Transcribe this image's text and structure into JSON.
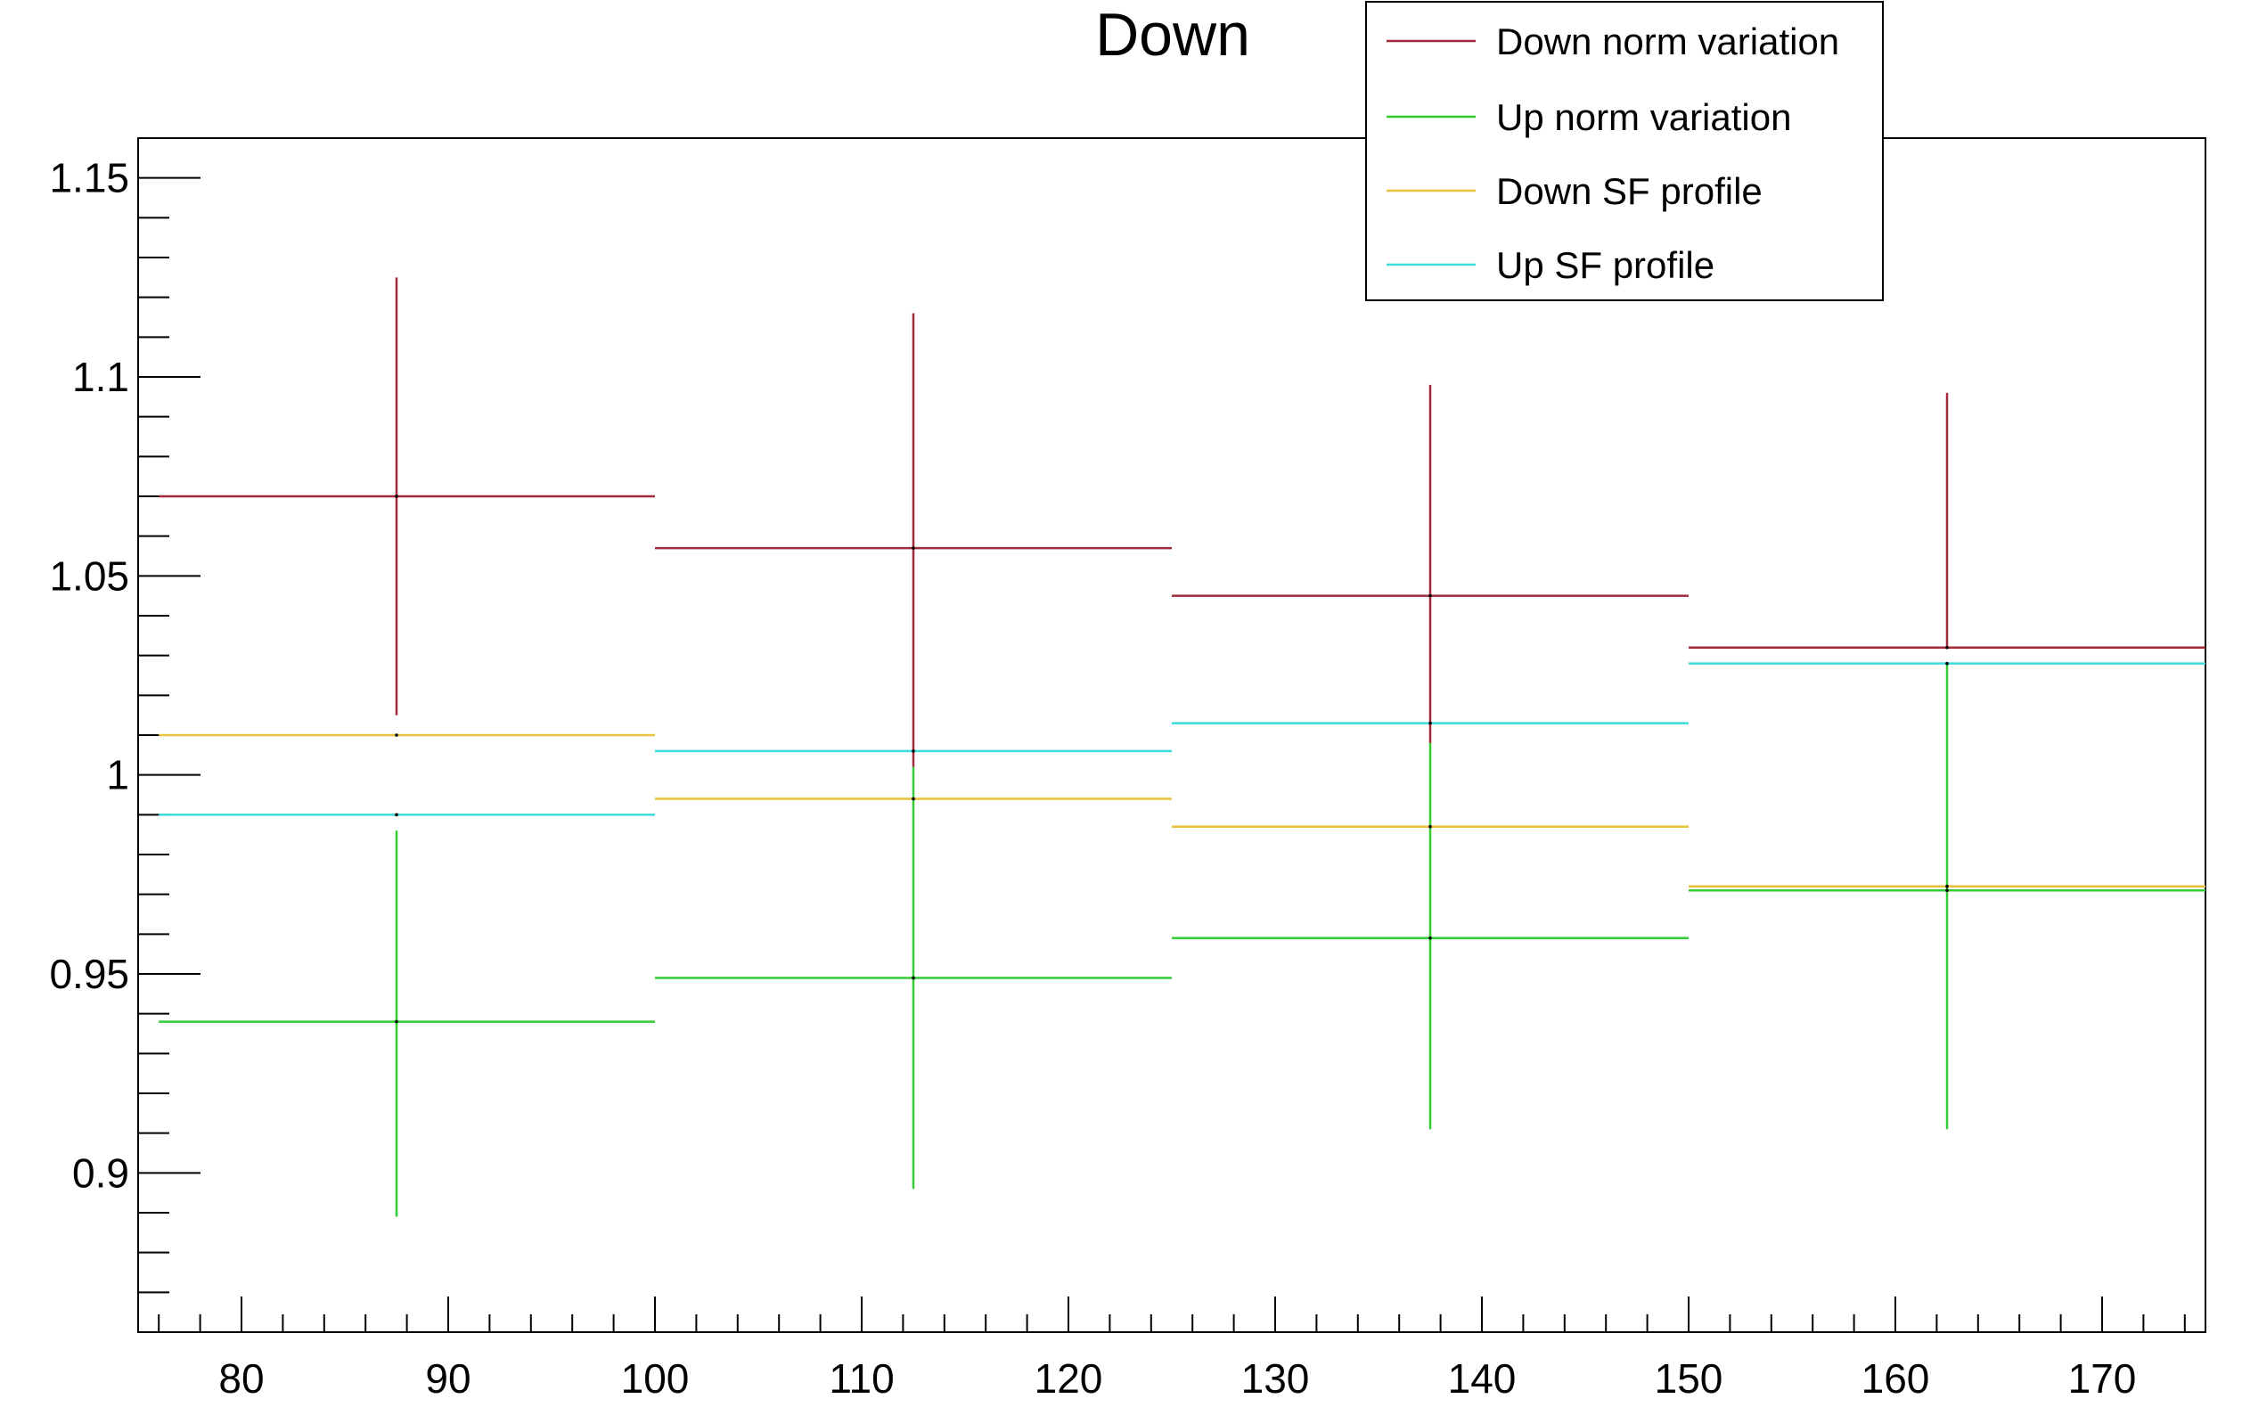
{
  "chart_data": {
    "type": "line",
    "title": "Down",
    "xlabel": "",
    "ylabel": "",
    "xlim": [
      75,
      175
    ],
    "ylim": [
      0.86,
      1.16
    ],
    "x_ticks": [
      80,
      90,
      100,
      110,
      120,
      130,
      140,
      150,
      160,
      170
    ],
    "y_ticks": [
      0.9,
      0.95,
      1,
      1.05,
      1.1,
      1.15
    ],
    "x_tick_labels": [
      "80",
      "90",
      "100",
      "110",
      "120",
      "130",
      "140",
      "150",
      "160",
      "170"
    ],
    "y_tick_labels": [
      "0.9",
      "0.95",
      "1",
      "1.05",
      "1.1",
      "1.15"
    ],
    "bins": [
      [
        75,
        100
      ],
      [
        100,
        125
      ],
      [
        125,
        150
      ],
      [
        150,
        175
      ]
    ],
    "x": [
      87.5,
      112.5,
      137.5,
      162.5
    ],
    "legend_position": "top-right",
    "grid": false,
    "series": [
      {
        "name": "Down norm variation",
        "color": "#a32a3a",
        "values": [
          1.07,
          1.057,
          1.045,
          1.032
        ],
        "err_low": [
          1.015,
          1.002,
          1.008,
          1.032
        ],
        "err_high": [
          1.125,
          1.116,
          1.098,
          1.096
        ]
      },
      {
        "name": "Up norm variation",
        "color": "#33cc33",
        "values": [
          0.938,
          0.949,
          0.959,
          0.971
        ],
        "err_low": [
          0.889,
          0.896,
          0.911,
          0.911
        ],
        "err_high": [
          0.986,
          1.002,
          1.008,
          1.028
        ]
      },
      {
        "name": "Down SF profile",
        "color": "#e8c23a",
        "values": [
          1.01,
          0.994,
          0.987,
          0.972
        ],
        "err_low": null,
        "err_high": null
      },
      {
        "name": "Up SF profile",
        "color": "#3ddcdc",
        "values": [
          0.99,
          1.006,
          1.013,
          1.028
        ],
        "err_low": null,
        "err_high": null
      }
    ]
  }
}
